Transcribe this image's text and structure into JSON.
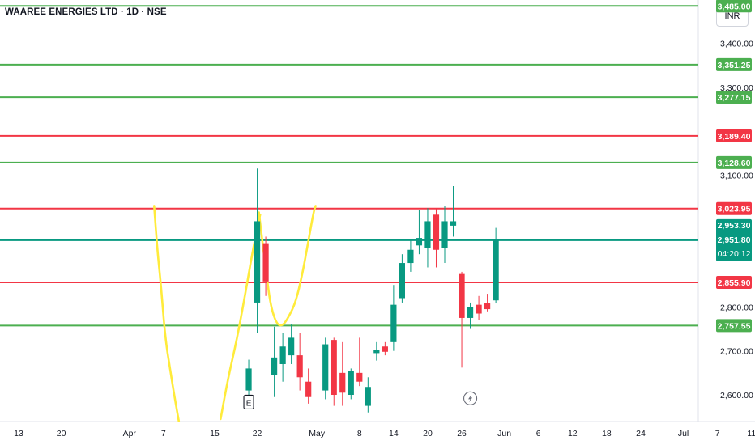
{
  "header": {
    "title": "WAAREE ENERGIES LTD · 1D · NSE",
    "currency": "INR"
  },
  "colors": {
    "up": "#089981",
    "down": "#f23645",
    "green_line": "#4caf50",
    "red_line": "#f23645",
    "curve": "#ffeb3b"
  },
  "chart_data": {
    "type": "candlestick",
    "ylim": [
      2540,
      3480
    ],
    "y_ticks": [
      {
        "value": 3400,
        "label": "3,400.00"
      },
      {
        "value": 3300,
        "label": "3,300.00"
      },
      {
        "value": 3100,
        "label": "3,100.00"
      },
      {
        "value": 2800,
        "label": "2,800.00"
      },
      {
        "value": 2700,
        "label": "2,700.00"
      },
      {
        "value": 2600,
        "label": "2,600.00"
      }
    ],
    "x_ticks": [
      {
        "date": "2025-03-13",
        "label": "13"
      },
      {
        "date": "2025-03-20",
        "label": "20"
      },
      {
        "date": "2025-04-01",
        "label": "Apr"
      },
      {
        "date": "2025-04-07",
        "label": "7"
      },
      {
        "date": "2025-04-15",
        "label": "15"
      },
      {
        "date": "2025-04-22",
        "label": "22"
      },
      {
        "date": "2025-05-01",
        "label": "May"
      },
      {
        "date": "2025-05-08",
        "label": "8"
      },
      {
        "date": "2025-05-14",
        "label": "14"
      },
      {
        "date": "2025-05-20",
        "label": "20"
      },
      {
        "date": "2025-05-26",
        "label": "26"
      },
      {
        "date": "2025-06-02",
        "label": "Jun"
      },
      {
        "date": "2025-06-06",
        "label": "6"
      },
      {
        "date": "2025-06-12",
        "label": "12"
      },
      {
        "date": "2025-06-18",
        "label": "18"
      },
      {
        "date": "2025-06-24",
        "label": "24"
      },
      {
        "date": "2025-07-01",
        "label": "Jul"
      },
      {
        "date": "2025-07-07",
        "label": "7"
      },
      {
        "date": "2025-07-11",
        "label": "11"
      }
    ],
    "price_lines": [
      {
        "value": 3485,
        "label": "3,485.00",
        "color": "green"
      },
      {
        "value": 3351.25,
        "label": "3,351.25",
        "color": "green"
      },
      {
        "value": 3277.15,
        "label": "3,277.15",
        "color": "green"
      },
      {
        "value": 3189.4,
        "label": "3,189.40",
        "color": "red"
      },
      {
        "value": 3128.6,
        "label": "3,128.60",
        "color": "green"
      },
      {
        "value": 3023.95,
        "label": "3,023.95",
        "color": "red"
      },
      {
        "value": 2951.8,
        "label": "",
        "color": "teal"
      },
      {
        "value": 2855.9,
        "label": "2,855.90",
        "color": "red"
      },
      {
        "value": 2757.55,
        "label": "2,757.55",
        "color": "green"
      }
    ],
    "current_price": {
      "high_label": "2,953.30",
      "close_label": "2,951.80",
      "countdown": "04:20:12"
    },
    "candles": [
      {
        "date": "2025-04-21",
        "o": 2610,
        "h": 2680,
        "l": 2600,
        "c": 2660
      },
      {
        "date": "2025-04-22",
        "o": 2810,
        "h": 3115,
        "l": 2740,
        "c": 2995
      },
      {
        "date": "2025-04-23",
        "o": 2945,
        "h": 2960,
        "l": 2825,
        "c": 2858
      },
      {
        "date": "2025-04-24",
        "o": 2645,
        "h": 2755,
        "l": 2595,
        "c": 2685
      },
      {
        "date": "2025-04-25",
        "o": 2670,
        "h": 2740,
        "l": 2630,
        "c": 2710
      },
      {
        "date": "2025-04-28",
        "o": 2690,
        "h": 2760,
        "l": 2670,
        "c": 2730
      },
      {
        "date": "2025-04-29",
        "o": 2690,
        "h": 2740,
        "l": 2610,
        "c": 2640
      },
      {
        "date": "2025-04-30",
        "o": 2630,
        "h": 2660,
        "l": 2580,
        "c": 2595
      },
      {
        "date": "2025-05-02",
        "o": 2610,
        "h": 2730,
        "l": 2590,
        "c": 2715
      },
      {
        "date": "2025-05-05",
        "o": 2725,
        "h": 2730,
        "l": 2575,
        "c": 2600
      },
      {
        "date": "2025-05-06",
        "o": 2650,
        "h": 2720,
        "l": 2575,
        "c": 2605
      },
      {
        "date": "2025-05-07",
        "o": 2600,
        "h": 2660,
        "l": 2590,
        "c": 2655
      },
      {
        "date": "2025-05-08",
        "o": 2650,
        "h": 2730,
        "l": 2620,
        "c": 2630
      },
      {
        "date": "2025-05-09",
        "o": 2575,
        "h": 2640,
        "l": 2560,
        "c": 2618
      },
      {
        "date": "2025-05-12",
        "o": 2695,
        "h": 2720,
        "l": 2678,
        "c": 2702
      },
      {
        "date": "2025-05-13",
        "o": 2710,
        "h": 2720,
        "l": 2690,
        "c": 2698
      },
      {
        "date": "2025-05-14",
        "o": 2720,
        "h": 2850,
        "l": 2700,
        "c": 2805
      },
      {
        "date": "2025-05-15",
        "o": 2820,
        "h": 2920,
        "l": 2810,
        "c": 2900
      },
      {
        "date": "2025-05-16",
        "o": 2900,
        "h": 2955,
        "l": 2880,
        "c": 2930
      },
      {
        "date": "2025-05-19",
        "o": 2940,
        "h": 3020,
        "l": 2920,
        "c": 2957
      },
      {
        "date": "2025-05-20",
        "o": 2935,
        "h": 3025,
        "l": 2890,
        "c": 2995
      },
      {
        "date": "2025-05-21",
        "o": 3010,
        "h": 3025,
        "l": 2890,
        "c": 2930
      },
      {
        "date": "2025-05-22",
        "o": 2935,
        "h": 3030,
        "l": 2900,
        "c": 2995
      },
      {
        "date": "2025-05-23",
        "o": 2985,
        "h": 3075,
        "l": 2960,
        "c": 2995
      },
      {
        "date": "2025-05-26",
        "o": 2875,
        "h": 2880,
        "l": 2662,
        "c": 2775
      },
      {
        "date": "2025-05-27",
        "o": 2775,
        "h": 2810,
        "l": 2750,
        "c": 2800
      },
      {
        "date": "2025-05-28",
        "o": 2805,
        "h": 2825,
        "l": 2770,
        "c": 2785
      },
      {
        "date": "2025-05-29",
        "o": 2808,
        "h": 2830,
        "l": 2790,
        "c": 2795
      },
      {
        "date": "2025-05-30",
        "o": 2815,
        "h": 2980,
        "l": 2808,
        "c": 2951.8
      }
    ],
    "markers": [
      {
        "date": "2025-04-21",
        "value": 2590,
        "label": "E",
        "kind": "earnings"
      },
      {
        "date": "2025-05-27",
        "value": 2592,
        "label": "",
        "kind": "dividend-bolt"
      }
    ],
    "curves": [
      {
        "points": [
          [
            15.9,
            3030
          ],
          [
            16.3,
            2925
          ],
          [
            16.7,
            2850
          ],
          [
            17.2,
            2730
          ],
          [
            17.8,
            2655
          ],
          [
            18.3,
            2595
          ],
          [
            18.8,
            2540
          ]
        ]
      },
      {
        "points": [
          [
            23.7,
            2545
          ],
          [
            24.6,
            2640
          ],
          [
            25.6,
            2725
          ],
          [
            26.6,
            2830
          ],
          [
            27.4,
            2920
          ],
          [
            28.1,
            2990
          ],
          [
            28.35,
            3010
          ]
        ]
      },
      {
        "points": [
          [
            28.2,
            3015
          ],
          [
            28.6,
            2950
          ],
          [
            29.1,
            2870
          ],
          [
            29.6,
            2800
          ],
          [
            30.3,
            2760
          ],
          [
            31.0,
            2757
          ],
          [
            31.7,
            2778
          ],
          [
            32.5,
            2810
          ],
          [
            33.3,
            2875
          ],
          [
            34.0,
            2950
          ],
          [
            34.6,
            3015
          ],
          [
            34.85,
            3030
          ]
        ]
      }
    ]
  }
}
